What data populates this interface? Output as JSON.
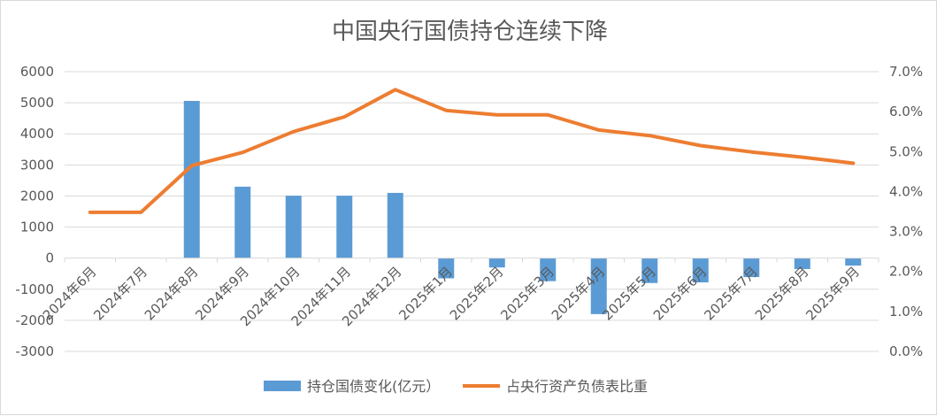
{
  "chart_data": {
    "type": "bar+line",
    "title": "中国央行国债持仓连续下降",
    "categories": [
      "2024年6月",
      "2024年7月",
      "2024年8月",
      "2024年9月",
      "2024年10月",
      "2024年11月",
      "2024年12月",
      "2025年1月",
      "2025年2月",
      "2025年3月",
      "2025年4月",
      "2025年5月",
      "2025年6月",
      "2025年7月",
      "2025年8月",
      "2025年9月"
    ],
    "series": [
      {
        "name": "持仓国债变化(亿元）",
        "kind": "bar",
        "axis": "left",
        "color": "#5b9bd5",
        "values": [
          0,
          0,
          5060,
          2300,
          2010,
          2010,
          2100,
          -650,
          -300,
          -740,
          -1800,
          -800,
          -780,
          -610,
          -350,
          -240
        ]
      },
      {
        "name": "占央行资产负债表比重",
        "kind": "line",
        "axis": "right",
        "color": "#ed7d31",
        "values": [
          3.48,
          3.48,
          4.65,
          4.98,
          5.5,
          5.87,
          6.55,
          6.03,
          5.92,
          5.92,
          5.54,
          5.4,
          5.15,
          4.99,
          4.86,
          4.71
        ]
      }
    ],
    "y_left": {
      "ylim": [
        -3000,
        6000
      ],
      "ticks": [
        "-3000",
        "-2000",
        "-1000",
        "0",
        "1000",
        "2000",
        "3000",
        "4000",
        "5000",
        "6000"
      ]
    },
    "y_right": {
      "ylim": [
        0,
        7
      ],
      "ticks": [
        "0.0%",
        "1.0%",
        "2.0%",
        "3.0%",
        "4.0%",
        "5.0%",
        "6.0%",
        "7.0%"
      ]
    },
    "grid": true,
    "legend": "bottom"
  }
}
